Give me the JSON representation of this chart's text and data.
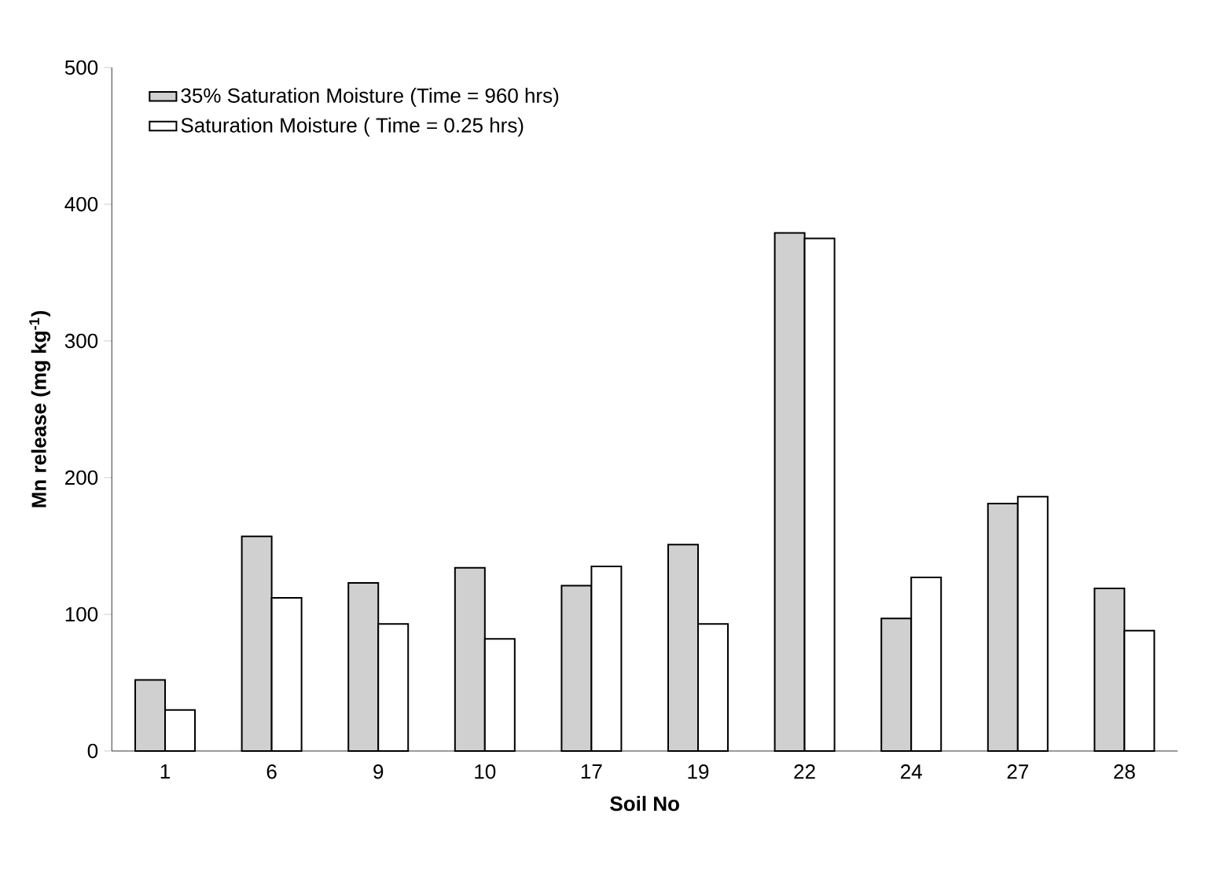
{
  "chart_data": {
    "type": "bar",
    "xlabel": "Soil No",
    "ylabel": "Mn release (mg kg$^{-1}$)",
    "categories": [
      "1",
      "6",
      "9",
      "10",
      "17",
      "19",
      "22",
      "24",
      "27",
      "28"
    ],
    "series": [
      {
        "name": "35% Saturation Moisture (Time = 960 hrs)",
        "color": "#d0d0d0",
        "values": [
          52,
          157,
          123,
          134,
          121,
          151,
          379,
          97,
          181,
          119
        ]
      },
      {
        "name": "Saturation Moisture ( Time = 0.25 hrs)",
        "color": "#ffffff",
        "values": [
          30,
          112,
          93,
          82,
          135,
          93,
          375,
          127,
          186,
          88
        ]
      }
    ],
    "ylim": [
      0,
      500
    ],
    "yticks": [
      0,
      100,
      200,
      300,
      400,
      500
    ],
    "legend": "top left",
    "grid": false
  }
}
